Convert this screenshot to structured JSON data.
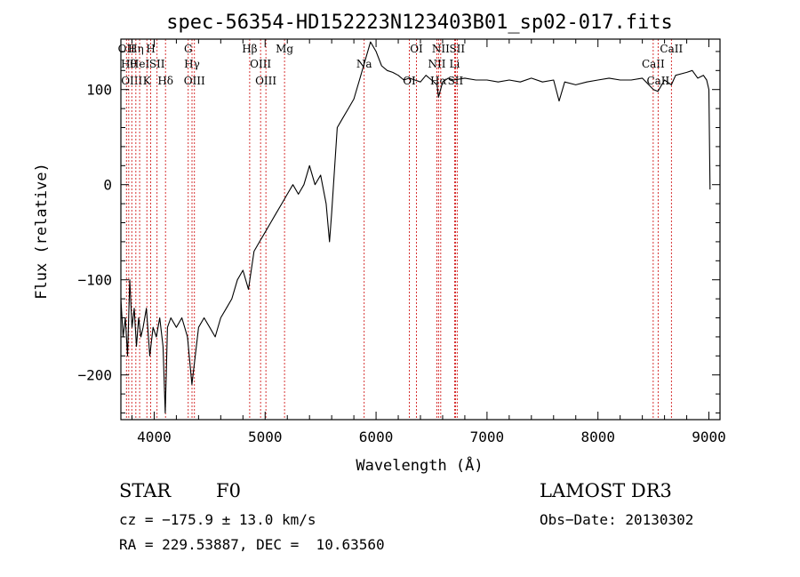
{
  "chart_data": {
    "type": "line",
    "title": "spec-56354-HD152223N123403B01_sp02-017.fits",
    "xlabel": "Wavelength (Å)",
    "ylabel": "Flux (relative)",
    "xlim": [
      3700,
      9100
    ],
    "ylim": [
      -247,
      153
    ],
    "xticks": [
      4000,
      5000,
      6000,
      7000,
      8000,
      9000
    ],
    "yticks": [
      -200,
      -100,
      0,
      100
    ],
    "grid": false,
    "series": [
      {
        "color": "#000000",
        "x": [
          3700,
          3720,
          3740,
          3760,
          3780,
          3800,
          3820,
          3840,
          3860,
          3880,
          3900,
          3930,
          3960,
          3990,
          4020,
          4050,
          4080,
          4100,
          4120,
          4150,
          4200,
          4250,
          4300,
          4340,
          4400,
          4450,
          4500,
          4550,
          4600,
          4650,
          4700,
          4750,
          4800,
          4850,
          4900,
          4950,
          5000,
          5050,
          5100,
          5150,
          5200,
          5250,
          5300,
          5350,
          5400,
          5450,
          5500,
          5550,
          5580,
          5600,
          5650,
          5700,
          5750,
          5800,
          5850,
          5900,
          5950,
          6000,
          6050,
          6100,
          6150,
          6200,
          6250,
          6300,
          6350,
          6400,
          6450,
          6500,
          6550,
          6563,
          6600,
          6650,
          6700,
          6800,
          6900,
          7000,
          7100,
          7200,
          7300,
          7400,
          7500,
          7600,
          7650,
          7700,
          7800,
          7900,
          8000,
          8100,
          8200,
          8300,
          8400,
          8500,
          8540,
          8600,
          8662,
          8700,
          8800,
          8850,
          8900,
          8950,
          8980,
          9000,
          9010
        ],
        "y": [
          -120,
          -160,
          -140,
          -180,
          -100,
          -150,
          -130,
          -170,
          -140,
          -160,
          -150,
          -130,
          -180,
          -150,
          -160,
          -140,
          -170,
          -240,
          -150,
          -140,
          -150,
          -140,
          -160,
          -210,
          -150,
          -140,
          -150,
          -160,
          -140,
          -130,
          -120,
          -100,
          -90,
          -110,
          -70,
          -60,
          -50,
          -40,
          -30,
          -20,
          -10,
          0,
          -10,
          0,
          20,
          0,
          10,
          -20,
          -60,
          -30,
          60,
          70,
          80,
          90,
          110,
          130,
          150,
          140,
          125,
          120,
          118,
          115,
          110,
          112,
          110,
          108,
          115,
          110,
          105,
          92,
          108,
          112,
          110,
          112,
          110,
          110,
          108,
          110,
          108,
          112,
          108,
          110,
          88,
          108,
          105,
          108,
          110,
          112,
          110,
          110,
          112,
          100,
          98,
          110,
          105,
          115,
          118,
          120,
          112,
          115,
          110,
          100,
          -5
        ]
      }
    ],
    "lines": [
      {
        "x": 3750,
        "label": "OII"
      },
      {
        "x": 3771,
        "label": "Hθ"
      },
      {
        "x": 3798,
        "label": "OIII"
      },
      {
        "x": 3835,
        "label": "Hη"
      },
      {
        "x": 3869,
        "label": "HeI"
      },
      {
        "x": 3934,
        "label": "K"
      },
      {
        "x": 3969,
        "label": "H"
      },
      {
        "x": 4026,
        "label": "SII"
      },
      {
        "x": 4102,
        "label": "Hδ"
      },
      {
        "x": 4307,
        "label": "G"
      },
      {
        "x": 4341,
        "label": "Hγ"
      },
      {
        "x": 4363,
        "label": "OIII"
      },
      {
        "x": 4861,
        "label": "Hβ"
      },
      {
        "x": 4959,
        "label": "OIII"
      },
      {
        "x": 5007,
        "label": "OIII"
      },
      {
        "x": 5175,
        "label": "Mg"
      },
      {
        "x": 5893,
        "label": "Na"
      },
      {
        "x": 6300,
        "label": "OI"
      },
      {
        "x": 6364,
        "label": "OI"
      },
      {
        "x": 6548,
        "label": "NII"
      },
      {
        "x": 6563,
        "label": "Hα"
      },
      {
        "x": 6583,
        "label": "NII"
      },
      {
        "x": 6708,
        "label": "Li"
      },
      {
        "x": 6716,
        "label": "SII"
      },
      {
        "x": 6731,
        "label": "SII"
      },
      {
        "x": 8498,
        "label": "CaII"
      },
      {
        "x": 8542,
        "label": "CaII"
      },
      {
        "x": 8662,
        "label": "CaII"
      }
    ]
  },
  "info": {
    "class_label": "STAR",
    "subclass_label": "F0",
    "survey": "LAMOST DR3",
    "cz": "cz = −175.9 ± 13.0 km/s",
    "obs_date": "Obs−Date: 20130302",
    "coords": "RA = 229.53887, DEC =  10.63560"
  }
}
